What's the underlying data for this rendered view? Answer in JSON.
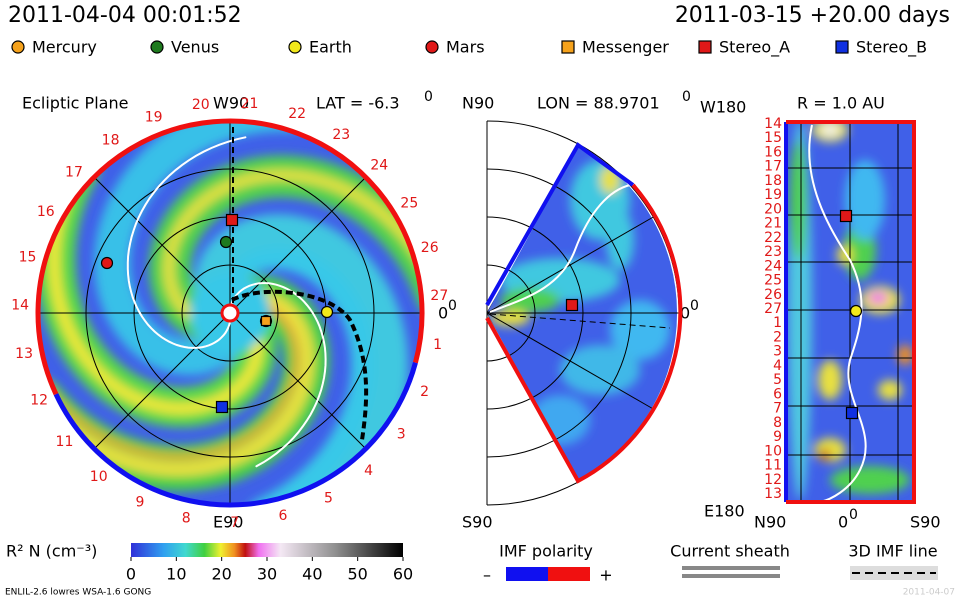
{
  "header": {
    "timestamp": "2011-04-04 00:01:52",
    "run": "2011-03-15 +20.00 days"
  },
  "legend": [
    {
      "label": "Mercury",
      "color": "#f5a21c",
      "shape": "circle"
    },
    {
      "label": "Venus",
      "color": "#1e7a1e",
      "shape": "circle"
    },
    {
      "label": "Earth",
      "color": "#f2e81a",
      "shape": "circle"
    },
    {
      "label": "Mars",
      "color": "#e01818",
      "shape": "circle"
    },
    {
      "label": "Messenger",
      "color": "#f5a21c",
      "shape": "square"
    },
    {
      "label": "Stereo_A",
      "color": "#e01818",
      "shape": "square"
    },
    {
      "label": "Stereo_B",
      "color": "#1030e0",
      "shape": "square"
    }
  ],
  "ecliptic": {
    "title": "Ecliptic Plane",
    "top": "W90",
    "lat": "LAT = -6.3",
    "lat_sup": "0",
    "bottom": "E90",
    "right": "0",
    "right_sup": "0",
    "rotations": [
      "1",
      "2",
      "3",
      "4",
      "5",
      "6",
      "7",
      "8",
      "9",
      "10",
      "11",
      "12",
      "13",
      "14",
      "15",
      "16",
      "17",
      "18",
      "19",
      "20",
      "21",
      "22",
      "23",
      "24",
      "25",
      "26",
      "27"
    ]
  },
  "meridional": {
    "top": "N90",
    "lon": "LON = 88.9701",
    "lon_sup": "0",
    "bottom": "S90",
    "right": "0",
    "right_sup": "0"
  },
  "radial": {
    "top_left": "W180",
    "title": "R = 1.0 AU",
    "bottom_left": "E180",
    "x_left": "N90",
    "x_mid": "0",
    "x_mid_sup": "0",
    "x_right": "S90",
    "rows": [
      "14",
      "15",
      "16",
      "17",
      "18",
      "19",
      "20",
      "21",
      "22",
      "23",
      "24",
      "25",
      "26",
      "27",
      "1",
      "2",
      "3",
      "4",
      "5",
      "6",
      "7",
      "8",
      "9",
      "10",
      "11",
      "12",
      "13"
    ]
  },
  "colorbar": {
    "label": "R² N (cm⁻³)",
    "range": [
      0,
      60
    ],
    "ticks": [
      0,
      10,
      20,
      30,
      40,
      50,
      60
    ]
  },
  "imf": {
    "title": "IMF polarity",
    "minus": "–",
    "plus": "+"
  },
  "sheath": {
    "title": "Current sheath"
  },
  "imf_line": {
    "title": "3D IMF line"
  },
  "footer": {
    "model": "ENLIL-2.6 lowres WSA-1.6 GONG",
    "date": "2011-04-07"
  }
}
